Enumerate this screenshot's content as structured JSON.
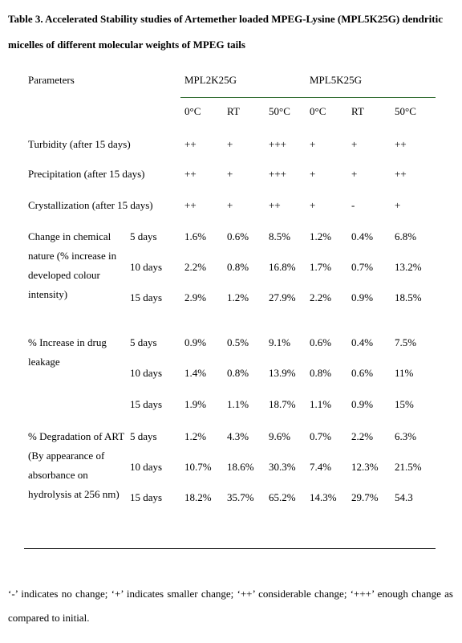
{
  "title": "Table 3. Accelerated Stability studies of Artemether loaded MPEG-Lysine (MPL5K25G) dendritic micelles of different molecular weights of MPEG tails",
  "table": {
    "header": {
      "parameters": "Parameters",
      "groups": [
        "MPL2K25G",
        "MPL5K25G"
      ],
      "columns": [
        "0°C",
        "RT",
        "50°C",
        "0°C",
        "RT",
        "50°C"
      ]
    },
    "rows": [
      {
        "label": "Turbidity (after 15 days)",
        "values": [
          "++",
          "+",
          "+++",
          "+",
          "+",
          "++"
        ]
      },
      {
        "label": "Precipitation (after 15 days)",
        "values": [
          "++",
          "+",
          "+++",
          "+",
          "+",
          "++"
        ]
      },
      {
        "label": "Crystallization (after 15 days)",
        "values": [
          "++",
          "+",
          "++",
          "+",
          "-",
          "+"
        ]
      },
      {
        "label": "Change in chemical nature (% increase in developed colour intensity)",
        "subrows": [
          {
            "label": "5 days",
            "values": [
              "1.6%",
              "0.6%",
              "8.5%",
              "1.2%",
              "0.4%",
              "6.8%"
            ]
          },
          {
            "label": "10 days",
            "values": [
              "2.2%",
              "0.8%",
              "16.8%",
              "1.7%",
              "0.7%",
              "13.2%"
            ]
          },
          {
            "label": "15 days",
            "values": [
              "2.9%",
              "1.2%",
              "27.9%",
              "2.2%",
              "0.9%",
              "18.5%"
            ]
          }
        ]
      },
      {
        "label": "% Increase in drug leakage",
        "subrows": [
          {
            "label": "5 days",
            "values": [
              "0.9%",
              "0.5%",
              "9.1%",
              "0.6%",
              "0.4%",
              "7.5%"
            ]
          },
          {
            "label": "10 days",
            "values": [
              "1.4%",
              "0.8%",
              "13.9%",
              "0.8%",
              "0.6%",
              "11%"
            ]
          },
          {
            "label": "15 days",
            "values": [
              "1.9%",
              "1.1%",
              "18.7%",
              "1.1%",
              "0.9%",
              "15%"
            ]
          }
        ]
      },
      {
        "label": "% Degradation of ART (By appearance of absorbance on hydrolysis at 256 nm)",
        "subrows": [
          {
            "label": "5 days",
            "values": [
              "1.2%",
              "4.3%",
              "9.6%",
              "0.7%",
              "2.2%",
              "6.3%"
            ]
          },
          {
            "label": "10 days",
            "values": [
              "10.7%",
              "18.6%",
              "30.3%",
              "7.4%",
              "12.3%",
              "21.5%"
            ]
          },
          {
            "label": "15 days",
            "values": [
              "18.2%",
              "35.7%",
              "65.2%",
              "14.3%",
              "29.7%",
              "54.3"
            ]
          }
        ]
      }
    ]
  },
  "footnote": "‘-’ indicates no change; ‘+’ indicates smaller change; ‘++’ considerable change; ‘+++’ enough change as compared to initial."
}
